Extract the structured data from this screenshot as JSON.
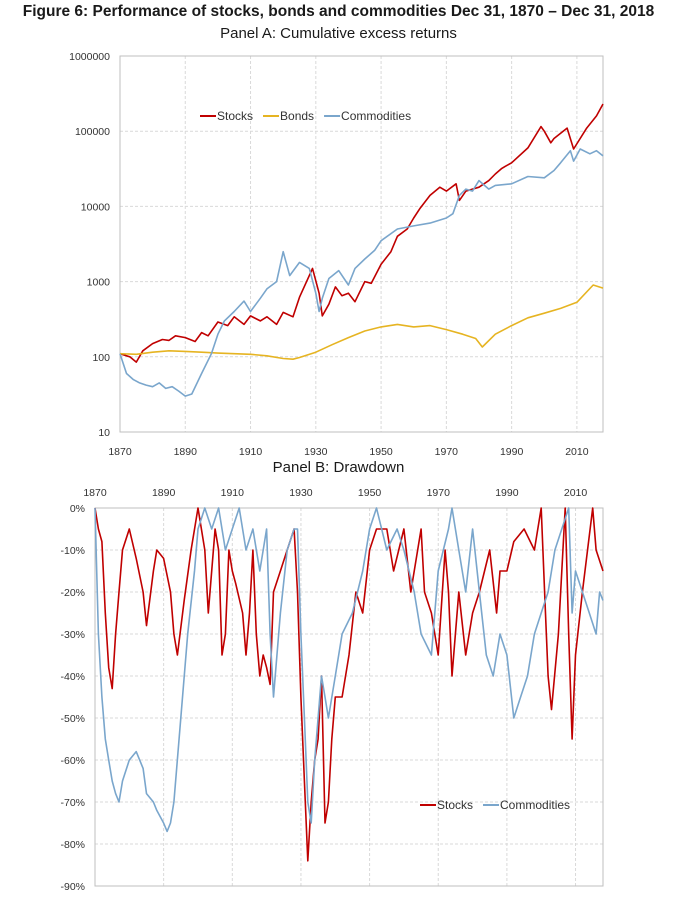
{
  "figure_title": "Figure 6: Performance of stocks, bonds and commodities Dec 31, 1870 – Dec 31, 2018",
  "colors": {
    "stocks": "#c00000",
    "bonds": "#e6b422",
    "commodities": "#7aa6cc",
    "grid": "#d9d9d9",
    "axis": "#bfbfbf"
  },
  "chart_data": [
    {
      "type": "line",
      "title": "Panel A: Cumulative excess returns",
      "y_scale": "log",
      "ylim": [
        10,
        1000000
      ],
      "xlim": [
        1870,
        2018
      ],
      "x_tick_labels": [
        "1870",
        "1890",
        "1910",
        "1930",
        "1950",
        "1970",
        "1990",
        "2010"
      ],
      "y_tick_labels": [
        "10",
        "100",
        "1000",
        "10000",
        "100000",
        "1000000"
      ],
      "grid": true,
      "legend_position": "top-center",
      "series": [
        {
          "name": "Stocks",
          "color": "#c00000",
          "x": [
            1870,
            1873,
            1875,
            1877,
            1880,
            1883,
            1885,
            1887,
            1890,
            1893,
            1895,
            1897,
            1900,
            1903,
            1905,
            1908,
            1910,
            1913,
            1915,
            1918,
            1920,
            1923,
            1925,
            1928,
            1929,
            1931,
            1932,
            1934,
            1936,
            1938,
            1940,
            1942,
            1945,
            1947,
            1950,
            1953,
            1955,
            1958,
            1960,
            1962,
            1965,
            1968,
            1970,
            1973,
            1974,
            1976,
            1980,
            1983,
            1985,
            1987,
            1988,
            1990,
            1995,
            1999,
            2000,
            2002,
            2003,
            2007,
            2009,
            2013,
            2016,
            2018
          ],
          "y": [
            110,
            100,
            85,
            120,
            150,
            170,
            165,
            190,
            180,
            160,
            210,
            190,
            290,
            260,
            340,
            270,
            350,
            300,
            340,
            270,
            390,
            340,
            620,
            1200,
            1500,
            700,
            350,
            500,
            850,
            650,
            700,
            540,
            1000,
            950,
            1700,
            2500,
            4000,
            5000,
            7000,
            9500,
            14000,
            18000,
            16000,
            20000,
            12000,
            16000,
            18000,
            22000,
            27000,
            32000,
            34000,
            38000,
            60000,
            115000,
            100000,
            70000,
            80000,
            110000,
            58000,
            110000,
            160000,
            230000
          ]
        },
        {
          "name": "Bonds",
          "color": "#e6b422",
          "x": [
            1870,
            1875,
            1880,
            1885,
            1890,
            1895,
            1900,
            1905,
            1910,
            1915,
            1920,
            1923,
            1925,
            1930,
            1935,
            1940,
            1945,
            1950,
            1955,
            1960,
            1965,
            1970,
            1975,
            1979,
            1981,
            1985,
            1990,
            1995,
            2000,
            2005,
            2010,
            2015,
            2018
          ],
          "y": [
            110,
            108,
            115,
            120,
            118,
            115,
            112,
            110,
            108,
            103,
            95,
            93,
            98,
            115,
            145,
            180,
            220,
            250,
            270,
            250,
            260,
            230,
            200,
            175,
            135,
            200,
            260,
            330,
            380,
            440,
            530,
            900,
            820
          ]
        },
        {
          "name": "Commodities",
          "color": "#7aa6cc",
          "x": [
            1870,
            1872,
            1874,
            1876,
            1878,
            1880,
            1882,
            1884,
            1886,
            1888,
            1890,
            1892,
            1895,
            1898,
            1900,
            1902,
            1905,
            1908,
            1910,
            1913,
            1915,
            1918,
            1920,
            1922,
            1925,
            1928,
            1930,
            1931,
            1932,
            1934,
            1937,
            1940,
            1942,
            1945,
            1948,
            1950,
            1955,
            1960,
            1965,
            1970,
            1972,
            1974,
            1976,
            1978,
            1980,
            1983,
            1985,
            1990,
            1995,
            2000,
            2003,
            2005,
            2008,
            2009,
            2011,
            2014,
            2016,
            2018
          ],
          "y": [
            110,
            60,
            50,
            45,
            42,
            40,
            45,
            38,
            40,
            35,
            30,
            32,
            60,
            110,
            200,
            300,
            400,
            550,
            400,
            600,
            800,
            1000,
            2500,
            1200,
            1800,
            1500,
            700,
            400,
            600,
            1100,
            1400,
            900,
            1500,
            2000,
            2600,
            3500,
            5000,
            5500,
            6000,
            7000,
            8000,
            14000,
            17000,
            16000,
            22000,
            17000,
            19000,
            20000,
            25000,
            24000,
            30000,
            38000,
            55000,
            40000,
            58000,
            50000,
            55000,
            47000
          ]
        }
      ]
    },
    {
      "type": "area",
      "title": "Panel B: Drawdown",
      "ylim": [
        -90,
        0
      ],
      "xlim": [
        1870,
        2018
      ],
      "x_tick_labels": [
        "1870",
        "1890",
        "1910",
        "1930",
        "1950",
        "1970",
        "1990",
        "2010"
      ],
      "y_tick_labels": [
        "0%",
        "-10%",
        "-20%",
        "-30%",
        "-40%",
        "-50%",
        "-60%",
        "-70%",
        "-80%",
        "-90%"
      ],
      "grid": true,
      "legend_position": "bottom-right",
      "series": [
        {
          "name": "Stocks",
          "color": "#c00000",
          "x": [
            1870,
            1871,
            1872,
            1873,
            1874,
            1875,
            1876,
            1877,
            1878,
            1880,
            1882,
            1884,
            1885,
            1887,
            1888,
            1890,
            1892,
            1893,
            1894,
            1896,
            1898,
            1900,
            1902,
            1903,
            1905,
            1906,
            1907,
            1908,
            1909,
            1910,
            1911,
            1913,
            1914,
            1915,
            1916,
            1917,
            1918,
            1919,
            1920,
            1921,
            1922,
            1924,
            1926,
            1928,
            1929,
            1930,
            1931,
            1932,
            1933,
            1934,
            1935,
            1936,
            1937,
            1938,
            1939,
            1940,
            1942,
            1944,
            1946,
            1948,
            1950,
            1952,
            1955,
            1957,
            1960,
            1962,
            1965,
            1966,
            1968,
            1970,
            1972,
            1973,
            1974,
            1975,
            1976,
            1978,
            1980,
            1982,
            1985,
            1987,
            1988,
            1990,
            1992,
            1995,
            1998,
            2000,
            2001,
            2002,
            2003,
            2005,
            2007,
            2008,
            2009,
            2010,
            2012,
            2015,
            2016,
            2018
          ],
          "y": [
            0,
            -5,
            -8,
            -25,
            -38,
            -43,
            -30,
            -20,
            -10,
            -5,
            -12,
            -20,
            -28,
            -15,
            -10,
            -12,
            -20,
            -30,
            -35,
            -22,
            -10,
            0,
            -10,
            -25,
            -5,
            -10,
            -35,
            -30,
            -10,
            -15,
            -18,
            -25,
            -35,
            -25,
            -10,
            -30,
            -40,
            -35,
            -38,
            -42,
            -20,
            -15,
            -10,
            -5,
            -20,
            -45,
            -65,
            -84,
            -70,
            -60,
            -55,
            -40,
            -75,
            -70,
            -55,
            -45,
            -45,
            -35,
            -20,
            -25,
            -10,
            -5,
            -5,
            -15,
            -5,
            -20,
            -5,
            -20,
            -25,
            -35,
            -10,
            -20,
            -40,
            -30,
            -20,
            -35,
            -25,
            -20,
            -10,
            -25,
            -15,
            -15,
            -8,
            -5,
            -10,
            0,
            -20,
            -40,
            -48,
            -30,
            0,
            -30,
            -55,
            -35,
            -20,
            0,
            -10,
            -15
          ]
        },
        {
          "name": "Commodities",
          "color": "#7aa6cc",
          "x": [
            1870,
            1871,
            1872,
            1873,
            1874,
            1875,
            1876,
            1877,
            1878,
            1880,
            1882,
            1884,
            1885,
            1887,
            1888,
            1890,
            1891,
            1892,
            1893,
            1895,
            1897,
            1899,
            1900,
            1902,
            1904,
            1906,
            1908,
            1910,
            1912,
            1914,
            1916,
            1918,
            1920,
            1921,
            1922,
            1924,
            1926,
            1928,
            1929,
            1930,
            1931,
            1932,
            1933,
            1934,
            1935,
            1936,
            1937,
            1938,
            1940,
            1942,
            1945,
            1948,
            1950,
            1952,
            1955,
            1958,
            1960,
            1963,
            1965,
            1968,
            1970,
            1973,
            1974,
            1976,
            1978,
            1980,
            1982,
            1984,
            1986,
            1988,
            1990,
            1992,
            1994,
            1996,
            1998,
            2000,
            2002,
            2004,
            2006,
            2008,
            2009,
            2010,
            2012,
            2014,
            2016,
            2017,
            2018
          ],
          "y": [
            0,
            -30,
            -45,
            -55,
            -60,
            -65,
            -68,
            -70,
            -65,
            -60,
            -58,
            -62,
            -68,
            -70,
            -72,
            -75,
            -77,
            -75,
            -70,
            -50,
            -30,
            -15,
            -5,
            0,
            -5,
            0,
            -10,
            -5,
            0,
            -10,
            -5,
            -15,
            -5,
            -30,
            -45,
            -25,
            -10,
            -5,
            -5,
            -30,
            -50,
            -70,
            -75,
            -60,
            -50,
            -40,
            -45,
            -50,
            -40,
            -30,
            -25,
            -15,
            -5,
            0,
            -10,
            -5,
            -10,
            -20,
            -30,
            -35,
            -15,
            -5,
            0,
            -10,
            -20,
            -5,
            -20,
            -35,
            -40,
            -30,
            -35,
            -50,
            -45,
            -40,
            -30,
            -25,
            -20,
            -10,
            -5,
            0,
            -25,
            -15,
            -20,
            -25,
            -30,
            -20,
            -22
          ]
        }
      ]
    }
  ]
}
